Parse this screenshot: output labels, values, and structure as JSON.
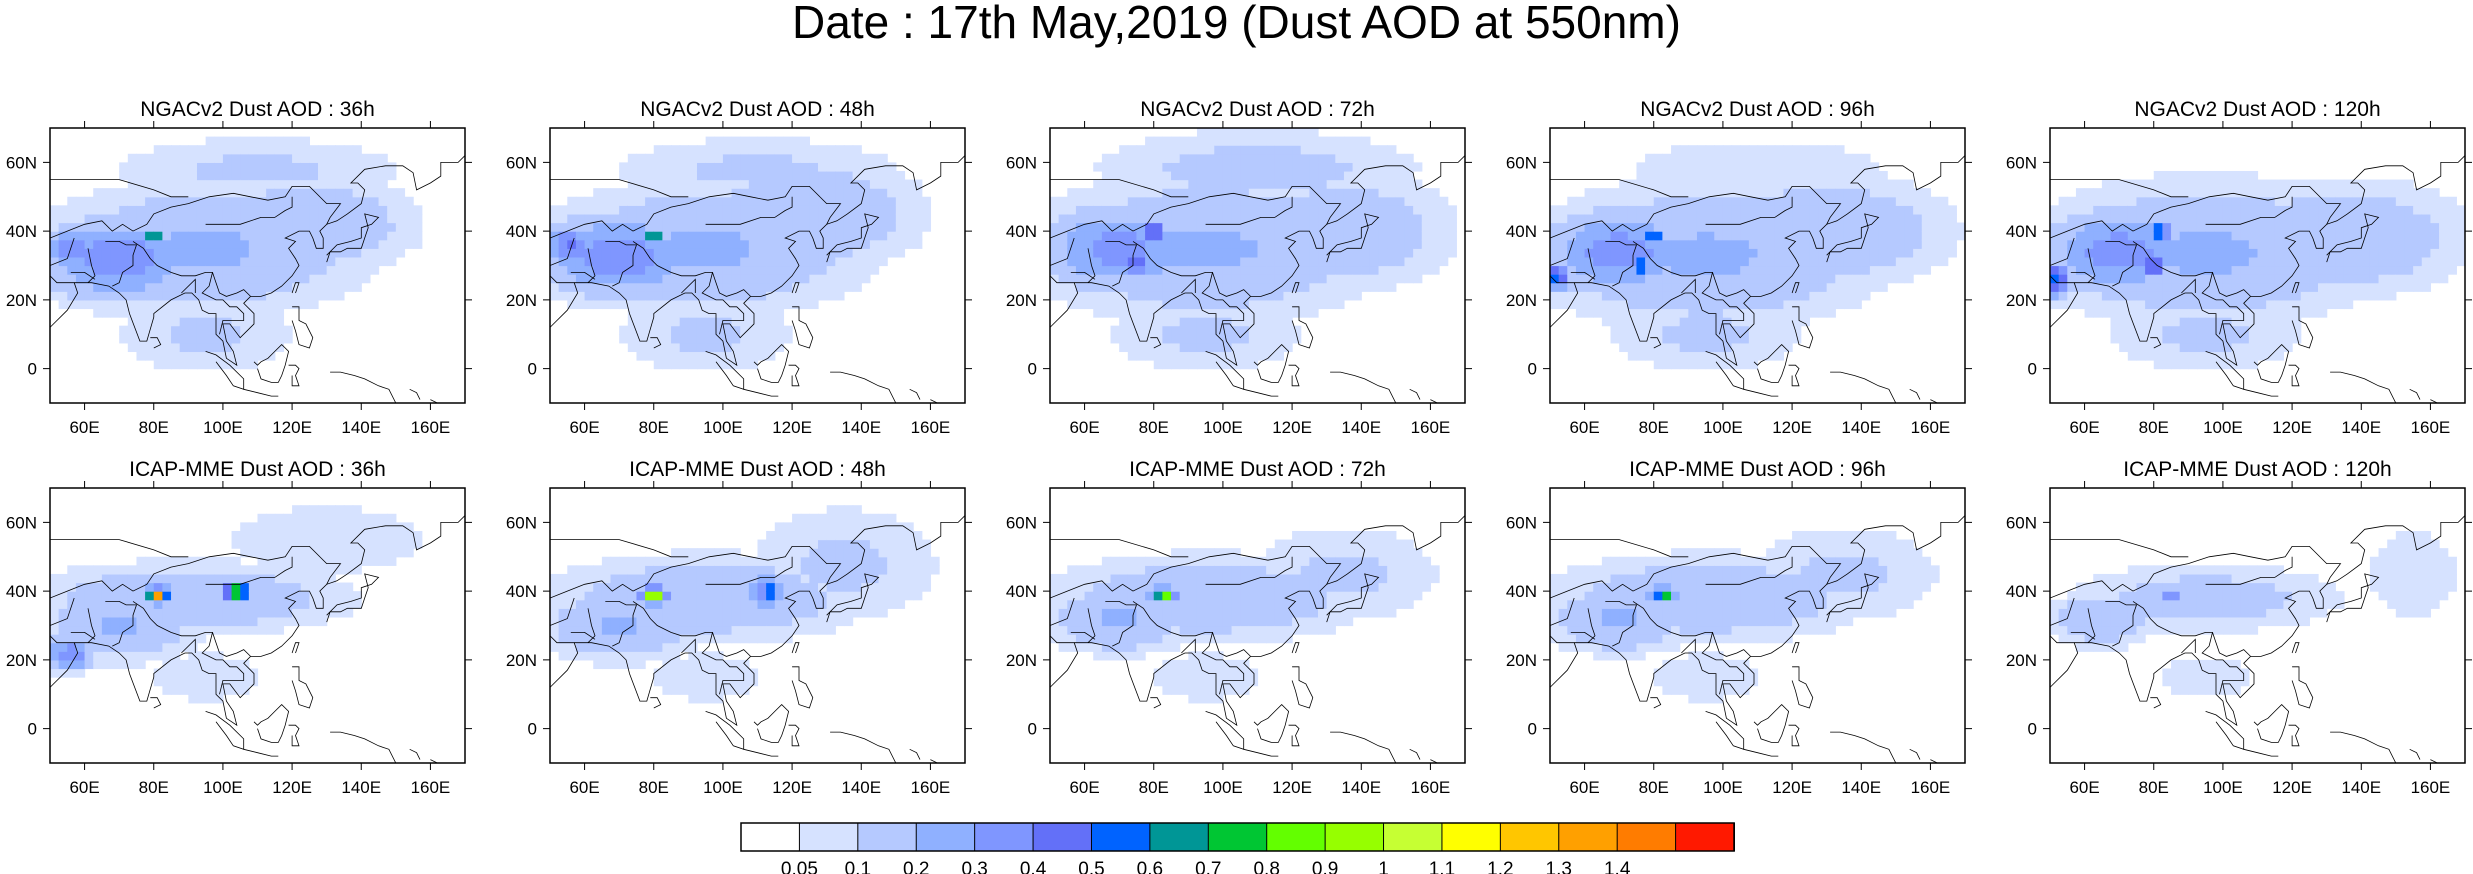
{
  "figure": {
    "title": "Date : 17th May,2019 (Dust AOD at 550nm)"
  },
  "map_extent": {
    "lon": [
      50,
      170
    ],
    "lat": [
      -10,
      70
    ]
  },
  "axes": {
    "lon_ticks": [
      60,
      80,
      100,
      120,
      140,
      160
    ],
    "lon_labels": [
      "60E",
      "80E",
      "100E",
      "120E",
      "140E",
      "160E"
    ],
    "lat_ticks": [
      0,
      20,
      40,
      60
    ],
    "lat_labels": [
      "0",
      "20N",
      "40N",
      "60N"
    ]
  },
  "panels": [
    {
      "title": "NGACv2 Dust AOD : 36h",
      "blobs": [
        {
          "lon": 95,
          "lat": 35,
          "rx": 45,
          "ry": 18,
          "v": 0.22
        },
        {
          "lon": 70,
          "lat": 32,
          "rx": 22,
          "ry": 12,
          "v": 0.38
        },
        {
          "lon": 125,
          "lat": 42,
          "rx": 30,
          "ry": 14,
          "v": 0.2
        },
        {
          "lon": 95,
          "lat": 10,
          "rx": 28,
          "ry": 12,
          "v": 0.12
        },
        {
          "lon": 110,
          "lat": 58,
          "rx": 45,
          "ry": 10,
          "v": 0.12
        },
        {
          "lon": 56,
          "lat": 35,
          "rx": 8,
          "ry": 6,
          "v": 0.42
        },
        {
          "lon": 80,
          "lat": 39,
          "rx": 3,
          "ry": 2,
          "v": 0.85
        }
      ]
    },
    {
      "title": "NGACv2 Dust AOD : 48h",
      "blobs": [
        {
          "lon": 95,
          "lat": 35,
          "rx": 45,
          "ry": 18,
          "v": 0.22
        },
        {
          "lon": 70,
          "lat": 33,
          "rx": 22,
          "ry": 12,
          "v": 0.38
        },
        {
          "lon": 125,
          "lat": 45,
          "rx": 32,
          "ry": 16,
          "v": 0.2
        },
        {
          "lon": 95,
          "lat": 10,
          "rx": 28,
          "ry": 12,
          "v": 0.12
        },
        {
          "lon": 110,
          "lat": 58,
          "rx": 45,
          "ry": 10,
          "v": 0.12
        },
        {
          "lon": 56,
          "lat": 36,
          "rx": 8,
          "ry": 6,
          "v": 0.42
        },
        {
          "lon": 80,
          "lat": 39,
          "rx": 3,
          "ry": 2,
          "v": 0.85
        }
      ]
    },
    {
      "title": "NGACv2 Dust AOD : 72h",
      "blobs": [
        {
          "lon": 95,
          "lat": 35,
          "rx": 48,
          "ry": 20,
          "v": 0.22
        },
        {
          "lon": 70,
          "lat": 35,
          "rx": 22,
          "ry": 12,
          "v": 0.36
        },
        {
          "lon": 135,
          "lat": 40,
          "rx": 30,
          "ry": 16,
          "v": 0.2
        },
        {
          "lon": 95,
          "lat": 10,
          "rx": 30,
          "ry": 12,
          "v": 0.12
        },
        {
          "lon": 110,
          "lat": 58,
          "rx": 48,
          "ry": 12,
          "v": 0.14
        },
        {
          "lon": 75,
          "lat": 32,
          "rx": 6,
          "ry": 6,
          "v": 0.45
        },
        {
          "lon": 80,
          "lat": 40,
          "rx": 2.5,
          "ry": 2,
          "v": 0.85
        },
        {
          "lon": 76,
          "lat": 30,
          "rx": 2,
          "ry": 1.5,
          "v": 0.85
        }
      ]
    },
    {
      "title": "NGACv2 Dust AOD : 96h",
      "blobs": [
        {
          "lon": 95,
          "lat": 33,
          "rx": 48,
          "ry": 20,
          "v": 0.22
        },
        {
          "lon": 70,
          "lat": 34,
          "rx": 22,
          "ry": 12,
          "v": 0.36
        },
        {
          "lon": 130,
          "lat": 40,
          "rx": 35,
          "ry": 16,
          "v": 0.2
        },
        {
          "lon": 95,
          "lat": 10,
          "rx": 30,
          "ry": 12,
          "v": 0.12
        },
        {
          "lon": 110,
          "lat": 58,
          "rx": 45,
          "ry": 10,
          "v": 0.1
        },
        {
          "lon": 52,
          "lat": 27,
          "rx": 4,
          "ry": 4,
          "v": 0.55
        },
        {
          "lon": 80,
          "lat": 39,
          "rx": 2.5,
          "ry": 2,
          "v": 0.8
        },
        {
          "lon": 76,
          "lat": 30,
          "rx": 3,
          "ry": 2,
          "v": 0.85
        }
      ]
    },
    {
      "title": "NGACv2 Dust AOD : 120h",
      "blobs": [
        {
          "lon": 95,
          "lat": 34,
          "rx": 48,
          "ry": 20,
          "v": 0.22
        },
        {
          "lon": 70,
          "lat": 34,
          "rx": 22,
          "ry": 12,
          "v": 0.36
        },
        {
          "lon": 135,
          "lat": 38,
          "rx": 35,
          "ry": 16,
          "v": 0.2
        },
        {
          "lon": 95,
          "lat": 10,
          "rx": 30,
          "ry": 12,
          "v": 0.12
        },
        {
          "lon": 52,
          "lat": 26,
          "rx": 4,
          "ry": 5,
          "v": 0.6
        },
        {
          "lon": 82,
          "lat": 40,
          "rx": 3,
          "ry": 2,
          "v": 0.85
        },
        {
          "lon": 80,
          "lat": 30,
          "rx": 3,
          "ry": 2,
          "v": 0.8
        }
      ]
    },
    {
      "title": "ICAP-MME Dust AOD : 36h",
      "blobs": [
        {
          "lon": 90,
          "lat": 38,
          "rx": 45,
          "ry": 10,
          "v": 0.2
        },
        {
          "lon": 70,
          "lat": 30,
          "rx": 22,
          "ry": 10,
          "v": 0.22
        },
        {
          "lon": 130,
          "lat": 55,
          "rx": 35,
          "ry": 12,
          "v": 0.1
        },
        {
          "lon": 56,
          "lat": 22,
          "rx": 7,
          "ry": 5,
          "v": 0.38
        },
        {
          "lon": 95,
          "lat": 15,
          "rx": 25,
          "ry": 10,
          "v": 0.08
        },
        {
          "lon": 81,
          "lat": 39,
          "rx": 4,
          "ry": 2.5,
          "v": 0.9
        },
        {
          "lon": 81,
          "lat": 39,
          "rx": 2,
          "ry": 1.5,
          "v": 1.45
        },
        {
          "lon": 104,
          "lat": 40,
          "rx": 4,
          "ry": 3,
          "v": 0.9
        },
        {
          "lon": 104,
          "lat": 40,
          "rx": 2,
          "ry": 1.5,
          "v": 1.45
        }
      ]
    },
    {
      "title": "ICAP-MME Dust AOD : 48h",
      "blobs": [
        {
          "lon": 95,
          "lat": 38,
          "rx": 45,
          "ry": 12,
          "v": 0.2
        },
        {
          "lon": 70,
          "lat": 30,
          "rx": 22,
          "ry": 10,
          "v": 0.22
        },
        {
          "lon": 135,
          "lat": 48,
          "rx": 30,
          "ry": 18,
          "v": 0.12
        },
        {
          "lon": 95,
          "lat": 15,
          "rx": 25,
          "ry": 10,
          "v": 0.08
        },
        {
          "lon": 112,
          "lat": 40,
          "rx": 8,
          "ry": 6,
          "v": 0.35
        },
        {
          "lon": 80,
          "lat": 39,
          "rx": 4,
          "ry": 2.5,
          "v": 0.9
        },
        {
          "lon": 80,
          "lat": 39,
          "rx": 2,
          "ry": 1.5,
          "v": 1.45
        },
        {
          "lon": 113,
          "lat": 40,
          "rx": 2,
          "ry": 3,
          "v": 0.8
        }
      ]
    },
    {
      "title": "ICAP-MME Dust AOD : 72h",
      "blobs": [
        {
          "lon": 95,
          "lat": 38,
          "rx": 45,
          "ry": 12,
          "v": 0.2
        },
        {
          "lon": 70,
          "lat": 32,
          "rx": 20,
          "ry": 10,
          "v": 0.22
        },
        {
          "lon": 135,
          "lat": 45,
          "rx": 30,
          "ry": 15,
          "v": 0.12
        },
        {
          "lon": 95,
          "lat": 15,
          "rx": 25,
          "ry": 10,
          "v": 0.08
        },
        {
          "lon": 83,
          "lat": 39,
          "rx": 5,
          "ry": 3,
          "v": 0.5
        },
        {
          "lon": 83,
          "lat": 39,
          "rx": 3,
          "ry": 2,
          "v": 0.9
        },
        {
          "lon": 83,
          "lat": 39,
          "rx": 1.5,
          "ry": 1,
          "v": 1.25
        }
      ]
    },
    {
      "title": "ICAP-MME Dust AOD : 96h",
      "blobs": [
        {
          "lon": 95,
          "lat": 38,
          "rx": 45,
          "ry": 12,
          "v": 0.2
        },
        {
          "lon": 70,
          "lat": 32,
          "rx": 20,
          "ry": 10,
          "v": 0.22
        },
        {
          "lon": 135,
          "lat": 45,
          "rx": 30,
          "ry": 15,
          "v": 0.12
        },
        {
          "lon": 95,
          "lat": 15,
          "rx": 25,
          "ry": 10,
          "v": 0.08
        },
        {
          "lon": 83,
          "lat": 39,
          "rx": 5,
          "ry": 3,
          "v": 0.45
        },
        {
          "lon": 83,
          "lat": 39,
          "rx": 3,
          "ry": 2,
          "v": 0.8
        }
      ]
    },
    {
      "title": "ICAP-MME Dust AOD : 120h",
      "blobs": [
        {
          "lon": 95,
          "lat": 38,
          "rx": 40,
          "ry": 10,
          "v": 0.15
        },
        {
          "lon": 65,
          "lat": 32,
          "rx": 15,
          "ry": 8,
          "v": 0.2
        },
        {
          "lon": 155,
          "lat": 45,
          "rx": 15,
          "ry": 15,
          "v": 0.1
        },
        {
          "lon": 95,
          "lat": 15,
          "rx": 25,
          "ry": 10,
          "v": 0.07
        },
        {
          "lon": 85,
          "lat": 39,
          "rx": 4,
          "ry": 2.5,
          "v": 0.45
        }
      ]
    }
  ],
  "colorbar": {
    "levels": [
      "0.05",
      "0.1",
      "0.2",
      "0.3",
      "0.4",
      "0.5",
      "0.6",
      "0.7",
      "0.8",
      "0.9",
      "1",
      "1.1",
      "1.2",
      "1.3",
      "1.4"
    ],
    "colors": [
      "#ffffff",
      "#d6e2ff",
      "#b5c9ff",
      "#8fb0ff",
      "#7f96ff",
      "#6370f8",
      "#0063ff",
      "#009696",
      "#00c633",
      "#63ff00",
      "#96ff00",
      "#c6ff33",
      "#ffff00",
      "#ffc600",
      "#ffa000",
      "#ff7c00",
      "#ff1900"
    ]
  }
}
